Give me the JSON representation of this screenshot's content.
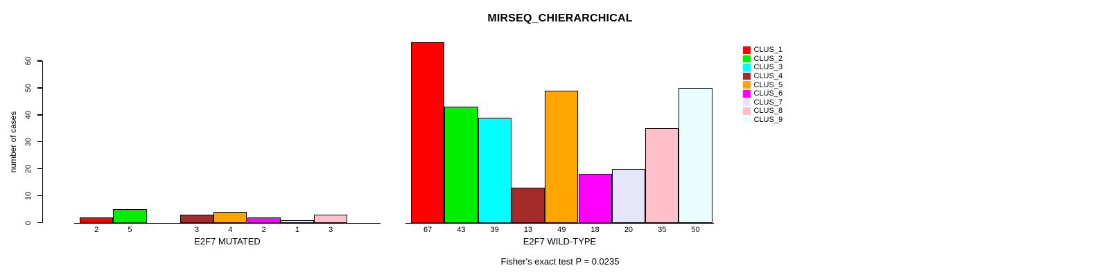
{
  "title": "MIRSEQ_CHIERARCHICAL",
  "ylabel": "number of cases",
  "annotation": "Fisher's exact test P = 0.0235",
  "legend": {
    "position": "right",
    "entries": [
      {
        "label": "CLUS_1",
        "color": "#FF0000"
      },
      {
        "label": "CLUS_2",
        "color": "#00EE00"
      },
      {
        "label": "CLUS_3",
        "color": "#00FFFF"
      },
      {
        "label": "CLUS_4",
        "color": "#A52A2A"
      },
      {
        "label": "CLUS_5",
        "color": "#FFA500"
      },
      {
        "label": "CLUS_6",
        "color": "#FF00FF"
      },
      {
        "label": "CLUS_7",
        "color": "#E6E6FA"
      },
      {
        "label": "CLUS_8",
        "color": "#FFC0CB"
      },
      {
        "label": "CLUS_9",
        "color": "#EAFDFD"
      }
    ]
  },
  "chart_data": [
    {
      "type": "bar",
      "title": "MIRSEQ_CHIERARCHICAL",
      "xlabel": "E2F7 MUTATED",
      "ylabel": "number of cases",
      "categories": [
        "CLUS_1",
        "CLUS_2",
        "CLUS_3",
        "CLUS_4",
        "CLUS_5",
        "CLUS_6",
        "CLUS_7",
        "CLUS_8",
        "CLUS_9"
      ],
      "values": [
        2,
        5,
        0,
        3,
        4,
        2,
        1,
        3,
        0
      ],
      "bar_labels": [
        "2",
        "5",
        "",
        "3",
        "4",
        "2",
        "1",
        "3",
        ""
      ],
      "ylim": [
        0,
        60
      ],
      "yticks": [
        0,
        10,
        20,
        30,
        40,
        50,
        60
      ],
      "grid": false,
      "legend_position": "right"
    },
    {
      "type": "bar",
      "xlabel": "E2F7 WILD-TYPE",
      "ylabel": "number of cases",
      "categories": [
        "CLUS_1",
        "CLUS_2",
        "CLUS_3",
        "CLUS_4",
        "CLUS_5",
        "CLUS_6",
        "CLUS_7",
        "CLUS_8",
        "CLUS_9"
      ],
      "values": [
        67,
        43,
        39,
        13,
        49,
        18,
        20,
        35,
        50
      ],
      "bar_labels": [
        "67",
        "43",
        "39",
        "13",
        "49",
        "18",
        "20",
        "35",
        "50"
      ],
      "ylim": [
        0,
        60
      ],
      "yticks": [
        0,
        10,
        20,
        30,
        40,
        50,
        60
      ],
      "grid": false,
      "legend_position": "right"
    }
  ]
}
